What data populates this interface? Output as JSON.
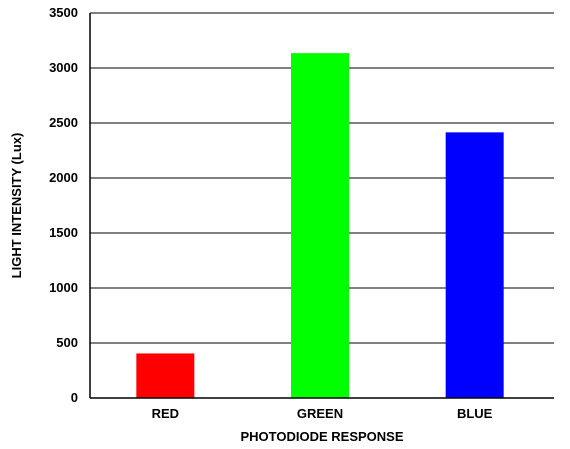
{
  "chart_data": {
    "type": "bar",
    "title": "",
    "xlabel": "PHOTODIODE RESPONSE",
    "ylabel": "LIGHT INTENSITY (Lux)",
    "categories": [
      "RED",
      "GREEN",
      "BLUE"
    ],
    "values": [
      405,
      3135,
      2415
    ],
    "colors": [
      "#ff0000",
      "#00ff00",
      "#0000ff"
    ],
    "ylim": [
      0,
      3500
    ],
    "yticks": [
      0,
      500,
      1000,
      1500,
      2000,
      2500,
      3000,
      3500
    ],
    "grid": true,
    "legend": "none"
  }
}
